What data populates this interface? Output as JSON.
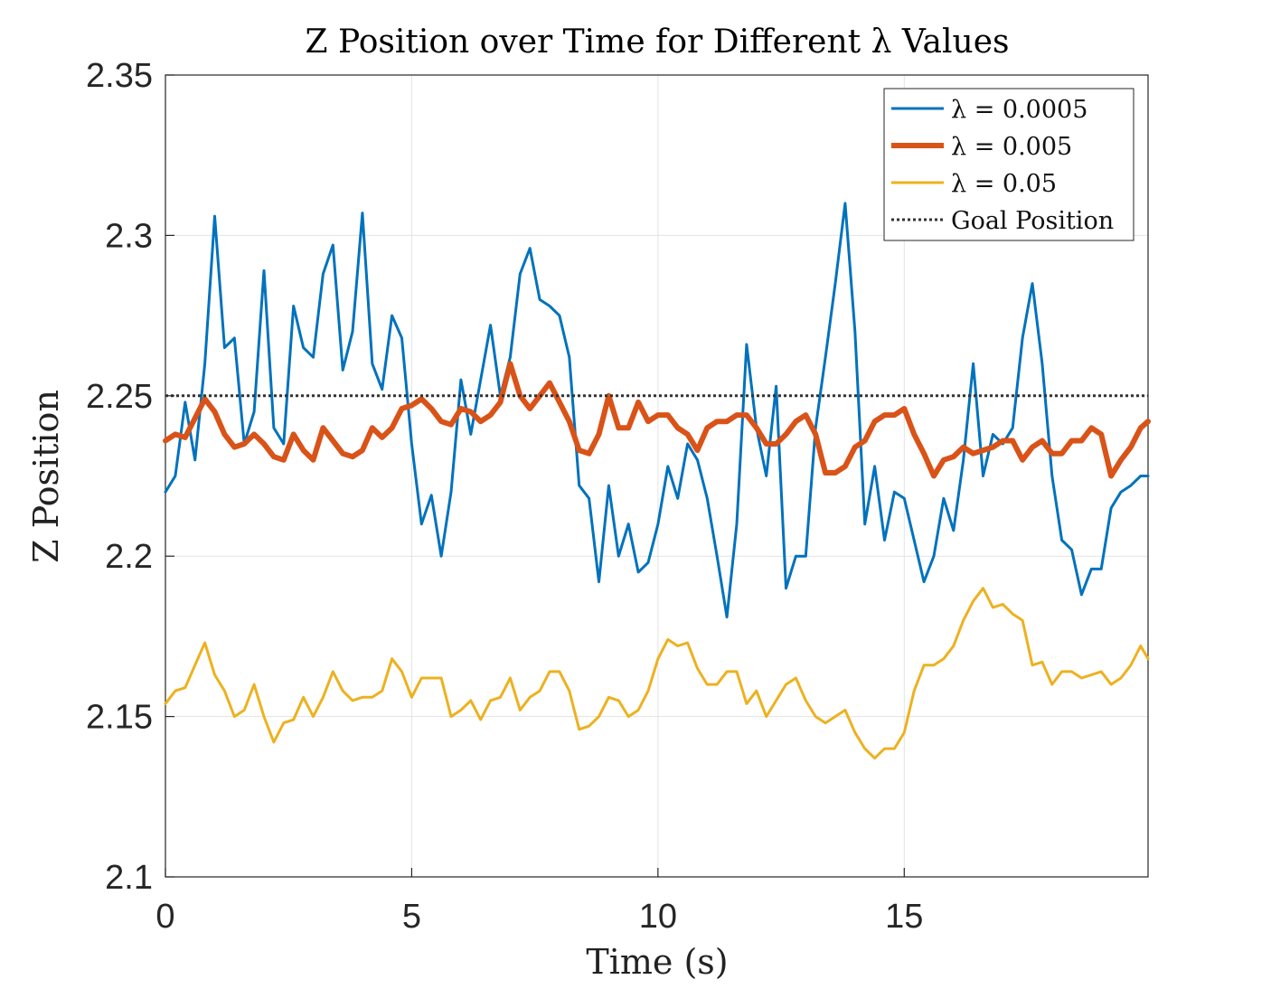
{
  "chart_data": {
    "type": "line",
    "title": "Z Position over Time for Different λ Values",
    "xlabel": "Time (s)",
    "ylabel": "Z Position",
    "xlim": [
      0,
      19.95
    ],
    "ylim": [
      2.1,
      2.35
    ],
    "xticks": [
      0,
      5,
      10,
      15
    ],
    "xtick_labels": [
      "0",
      "5",
      "10",
      "15"
    ],
    "yticks": [
      2.1,
      2.15,
      2.2,
      2.25,
      2.3,
      2.35
    ],
    "ytick_labels": [
      "2.1",
      "2.15",
      "2.2",
      "2.25",
      "2.3",
      "2.35"
    ],
    "grid": true,
    "legend_position": "top-right",
    "series": [
      {
        "name": "λ = 0.0005",
        "color": "#0072BD",
        "width": 3,
        "dash": "",
        "x": [
          0,
          0.2,
          0.4,
          0.6,
          0.8,
          1.0,
          1.2,
          1.4,
          1.6,
          1.8,
          2.0,
          2.2,
          2.4,
          2.6,
          2.8,
          3.0,
          3.2,
          3.4,
          3.6,
          3.8,
          4.0,
          4.2,
          4.4,
          4.6,
          4.8,
          5.0,
          5.2,
          5.4,
          5.6,
          5.8,
          6.0,
          6.2,
          6.4,
          6.6,
          6.8,
          7.0,
          7.2,
          7.4,
          7.6,
          7.8,
          8.0,
          8.2,
          8.4,
          8.6,
          8.8,
          9.0,
          9.2,
          9.4,
          9.6,
          9.8,
          10.0,
          10.2,
          10.4,
          10.6,
          10.8,
          11.0,
          11.2,
          11.4,
          11.6,
          11.8,
          12.0,
          12.2,
          12.4,
          12.6,
          12.8,
          13.0,
          13.2,
          13.4,
          13.6,
          13.8,
          14.0,
          14.2,
          14.4,
          14.6,
          14.8,
          15.0,
          15.2,
          15.4,
          15.6,
          15.8,
          16.0,
          16.2,
          16.4,
          16.6,
          16.8,
          17.0,
          17.2,
          17.4,
          17.6,
          17.8,
          18.0,
          18.2,
          18.4,
          18.6,
          18.8,
          19.0,
          19.2,
          19.4,
          19.6,
          19.8,
          19.95
        ],
        "y": [
          2.22,
          2.225,
          2.248,
          2.23,
          2.26,
          2.306,
          2.265,
          2.268,
          2.235,
          2.245,
          2.289,
          2.24,
          2.235,
          2.278,
          2.265,
          2.262,
          2.288,
          2.297,
          2.258,
          2.27,
          2.307,
          2.26,
          2.252,
          2.275,
          2.268,
          2.235,
          2.21,
          2.219,
          2.2,
          2.22,
          2.255,
          2.238,
          2.255,
          2.272,
          2.25,
          2.262,
          2.288,
          2.296,
          2.28,
          2.278,
          2.275,
          2.262,
          2.222,
          2.218,
          2.192,
          2.222,
          2.2,
          2.21,
          2.195,
          2.198,
          2.21,
          2.228,
          2.218,
          2.235,
          2.23,
          2.218,
          2.2,
          2.181,
          2.21,
          2.266,
          2.24,
          2.225,
          2.253,
          2.19,
          2.2,
          2.2,
          2.24,
          2.262,
          2.285,
          2.31,
          2.27,
          2.21,
          2.228,
          2.205,
          2.22,
          2.218,
          2.205,
          2.192,
          2.2,
          2.218,
          2.208,
          2.23,
          2.26,
          2.225,
          2.238,
          2.235,
          2.24,
          2.268,
          2.285,
          2.26,
          2.225,
          2.205,
          2.202,
          2.188,
          2.196,
          2.196,
          2.215,
          2.22,
          2.222,
          2.225,
          2.225
        ]
      },
      {
        "name": "λ = 0.005",
        "color": "#D95319",
        "width": 6,
        "dash": "",
        "x": [
          0,
          0.2,
          0.4,
          0.6,
          0.8,
          1.0,
          1.2,
          1.4,
          1.6,
          1.8,
          2.0,
          2.2,
          2.4,
          2.6,
          2.8,
          3.0,
          3.2,
          3.4,
          3.6,
          3.8,
          4.0,
          4.2,
          4.4,
          4.6,
          4.8,
          5.0,
          5.2,
          5.4,
          5.6,
          5.8,
          6.0,
          6.2,
          6.4,
          6.6,
          6.8,
          7.0,
          7.2,
          7.4,
          7.6,
          7.8,
          8.0,
          8.2,
          8.4,
          8.6,
          8.8,
          9.0,
          9.2,
          9.4,
          9.6,
          9.8,
          10.0,
          10.2,
          10.4,
          10.6,
          10.8,
          11.0,
          11.2,
          11.4,
          11.6,
          11.8,
          12.0,
          12.2,
          12.4,
          12.6,
          12.8,
          13.0,
          13.2,
          13.4,
          13.6,
          13.8,
          14.0,
          14.2,
          14.4,
          14.6,
          14.8,
          15.0,
          15.2,
          15.4,
          15.6,
          15.8,
          16.0,
          16.2,
          16.4,
          16.6,
          16.8,
          17.0,
          17.2,
          17.4,
          17.6,
          17.8,
          18.0,
          18.2,
          18.4,
          18.6,
          18.8,
          19.0,
          19.2,
          19.4,
          19.6,
          19.8,
          19.95
        ],
        "y": [
          2.236,
          2.238,
          2.237,
          2.243,
          2.249,
          2.245,
          2.238,
          2.234,
          2.235,
          2.238,
          2.235,
          2.231,
          2.23,
          2.238,
          2.233,
          2.23,
          2.24,
          2.236,
          2.232,
          2.231,
          2.233,
          2.24,
          2.237,
          2.24,
          2.246,
          2.247,
          2.249,
          2.246,
          2.242,
          2.241,
          2.246,
          2.245,
          2.242,
          2.244,
          2.248,
          2.26,
          2.25,
          2.246,
          2.25,
          2.254,
          2.248,
          2.242,
          2.233,
          2.232,
          2.238,
          2.25,
          2.24,
          2.24,
          2.248,
          2.242,
          2.244,
          2.244,
          2.24,
          2.238,
          2.233,
          2.24,
          2.242,
          2.242,
          2.244,
          2.244,
          2.24,
          2.235,
          2.235,
          2.238,
          2.242,
          2.244,
          2.238,
          2.226,
          2.226,
          2.228,
          2.234,
          2.236,
          2.242,
          2.244,
          2.244,
          2.246,
          2.238,
          2.232,
          2.225,
          2.23,
          2.231,
          2.234,
          2.232,
          2.233,
          2.234,
          2.236,
          2.236,
          2.23,
          2.234,
          2.236,
          2.232,
          2.232,
          2.236,
          2.236,
          2.24,
          2.238,
          2.225,
          2.23,
          2.234,
          2.24,
          2.242
        ]
      },
      {
        "name": "λ = 0.05",
        "color": "#EDB120",
        "width": 3,
        "dash": "",
        "x": [
          0,
          0.2,
          0.4,
          0.6,
          0.8,
          1.0,
          1.2,
          1.4,
          1.6,
          1.8,
          2.0,
          2.2,
          2.4,
          2.6,
          2.8,
          3.0,
          3.2,
          3.4,
          3.6,
          3.8,
          4.0,
          4.2,
          4.4,
          4.6,
          4.8,
          5.0,
          5.2,
          5.4,
          5.6,
          5.8,
          6.0,
          6.2,
          6.4,
          6.6,
          6.8,
          7.0,
          7.2,
          7.4,
          7.6,
          7.8,
          8.0,
          8.2,
          8.4,
          8.6,
          8.8,
          9.0,
          9.2,
          9.4,
          9.6,
          9.8,
          10.0,
          10.2,
          10.4,
          10.6,
          10.8,
          11.0,
          11.2,
          11.4,
          11.6,
          11.8,
          12.0,
          12.2,
          12.4,
          12.6,
          12.8,
          13.0,
          13.2,
          13.4,
          13.6,
          13.8,
          14.0,
          14.2,
          14.4,
          14.6,
          14.8,
          15.0,
          15.2,
          15.4,
          15.6,
          15.8,
          16.0,
          16.2,
          16.4,
          16.6,
          16.8,
          17.0,
          17.2,
          17.4,
          17.6,
          17.8,
          18.0,
          18.2,
          18.4,
          18.6,
          18.8,
          19.0,
          19.2,
          19.4,
          19.6,
          19.8,
          19.95
        ],
        "y": [
          2.154,
          2.158,
          2.159,
          2.166,
          2.173,
          2.163,
          2.158,
          2.15,
          2.152,
          2.16,
          2.15,
          2.142,
          2.148,
          2.149,
          2.156,
          2.15,
          2.156,
          2.164,
          2.158,
          2.155,
          2.156,
          2.156,
          2.158,
          2.168,
          2.164,
          2.156,
          2.162,
          2.162,
          2.162,
          2.15,
          2.152,
          2.155,
          2.149,
          2.155,
          2.156,
          2.162,
          2.152,
          2.156,
          2.158,
          2.164,
          2.164,
          2.158,
          2.146,
          2.147,
          2.15,
          2.156,
          2.155,
          2.15,
          2.152,
          2.158,
          2.168,
          2.174,
          2.172,
          2.173,
          2.165,
          2.16,
          2.16,
          2.164,
          2.164,
          2.154,
          2.158,
          2.15,
          2.155,
          2.16,
          2.162,
          2.155,
          2.15,
          2.148,
          2.15,
          2.152,
          2.145,
          2.14,
          2.137,
          2.14,
          2.14,
          2.145,
          2.158,
          2.166,
          2.166,
          2.168,
          2.172,
          2.18,
          2.186,
          2.19,
          2.184,
          2.185,
          2.182,
          2.18,
          2.166,
          2.167,
          2.16,
          2.164,
          2.164,
          2.162,
          2.163,
          2.164,
          2.16,
          2.162,
          2.166,
          2.172,
          2.168
        ]
      },
      {
        "name": "Goal Position",
        "color": "#333333",
        "width": 3,
        "dash": "3,3",
        "x": [
          0,
          19.95
        ],
        "y": [
          2.25,
          2.25
        ]
      }
    ]
  }
}
